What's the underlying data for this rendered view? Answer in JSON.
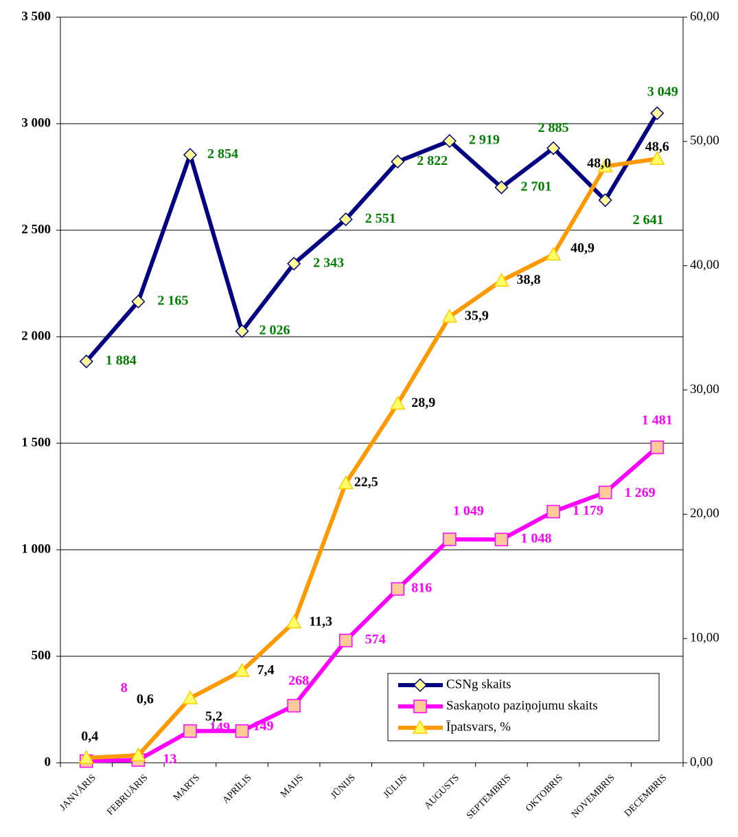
{
  "chart_data": {
    "type": "line",
    "categories": [
      "JANVĀRIS",
      "FEBRUĀRIS",
      "MARTS",
      "APRĪLIS",
      "MAIJS",
      "JŪNIJS",
      "JŪLIJS",
      "AUGUSTS",
      "SEPTEMBRIS",
      "OKTOBRIS",
      "NOVEMBRIS",
      "DECEMBRIS"
    ],
    "series": [
      {
        "name": "CSNg skaits",
        "color": "#000080",
        "marker": "diamond",
        "marker_color": "#ffff99",
        "label_color": "#008000",
        "values": [
          1884,
          2165,
          2854,
          2026,
          2343,
          2551,
          2822,
          2919,
          2701,
          2885,
          2641,
          3049
        ],
        "value_labels": [
          "1 884",
          "2 165",
          "2 854",
          "2 026",
          "2 343",
          "2 551",
          "2 822",
          "2 919",
          "2 701",
          "2 885",
          "2 641",
          "3 049"
        ]
      },
      {
        "name": "Saskaņoto paziņojumu skaits",
        "color": "#ff00ff",
        "marker": "square",
        "marker_color": "#ffcc99",
        "label_color": "#ff00ff",
        "values": [
          8,
          13,
          149,
          149,
          268,
          574,
          816,
          1049,
          1048,
          1179,
          1269,
          1481
        ],
        "value_labels": [
          "8",
          "13",
          "149",
          "149",
          "268",
          "574",
          "816",
          "1 049",
          "1 048",
          "1 179",
          "1 269",
          "1 481"
        ]
      },
      {
        "name": "Īpatsvars, %",
        "color": "#ff9900",
        "marker": "triangle",
        "marker_color": "#ffff66",
        "label_color": "#000000",
        "axis": "y2",
        "values": [
          0.4,
          0.6,
          5.2,
          7.4,
          11.3,
          22.5,
          28.9,
          35.9,
          38.8,
          40.9,
          48.0,
          48.6
        ],
        "value_labels": [
          "0,4",
          "0,6",
          "5,2",
          "7,4",
          "11,3",
          "22,5",
          "28,9",
          "35,9",
          "38,8",
          "40,9",
          "48,0",
          "48,6"
        ]
      }
    ],
    "ylim": [
      0,
      3500
    ],
    "yticks": [
      {
        "value": 0,
        "label": "0"
      },
      {
        "value": 500,
        "label": "500"
      },
      {
        "value": 1000,
        "label": "1 000"
      },
      {
        "value": 1500,
        "label": "1 500"
      },
      {
        "value": 2000,
        "label": "2 000"
      },
      {
        "value": 2500,
        "label": "2 500"
      },
      {
        "value": 3000,
        "label": "3 000"
      },
      {
        "value": 3500,
        "label": "3 500"
      }
    ],
    "y2lim": [
      0,
      60
    ],
    "y2ticks": [
      {
        "value": 0,
        "label": "0,00"
      },
      {
        "value": 10,
        "label": "10,00"
      },
      {
        "value": 20,
        "label": "20,00"
      },
      {
        "value": 30,
        "label": "30,00"
      },
      {
        "value": 40,
        "label": "40,00"
      },
      {
        "value": 50,
        "label": "50,00"
      },
      {
        "value": 60,
        "label": "60,00"
      }
    ],
    "grid": true,
    "legend": "lower right"
  }
}
